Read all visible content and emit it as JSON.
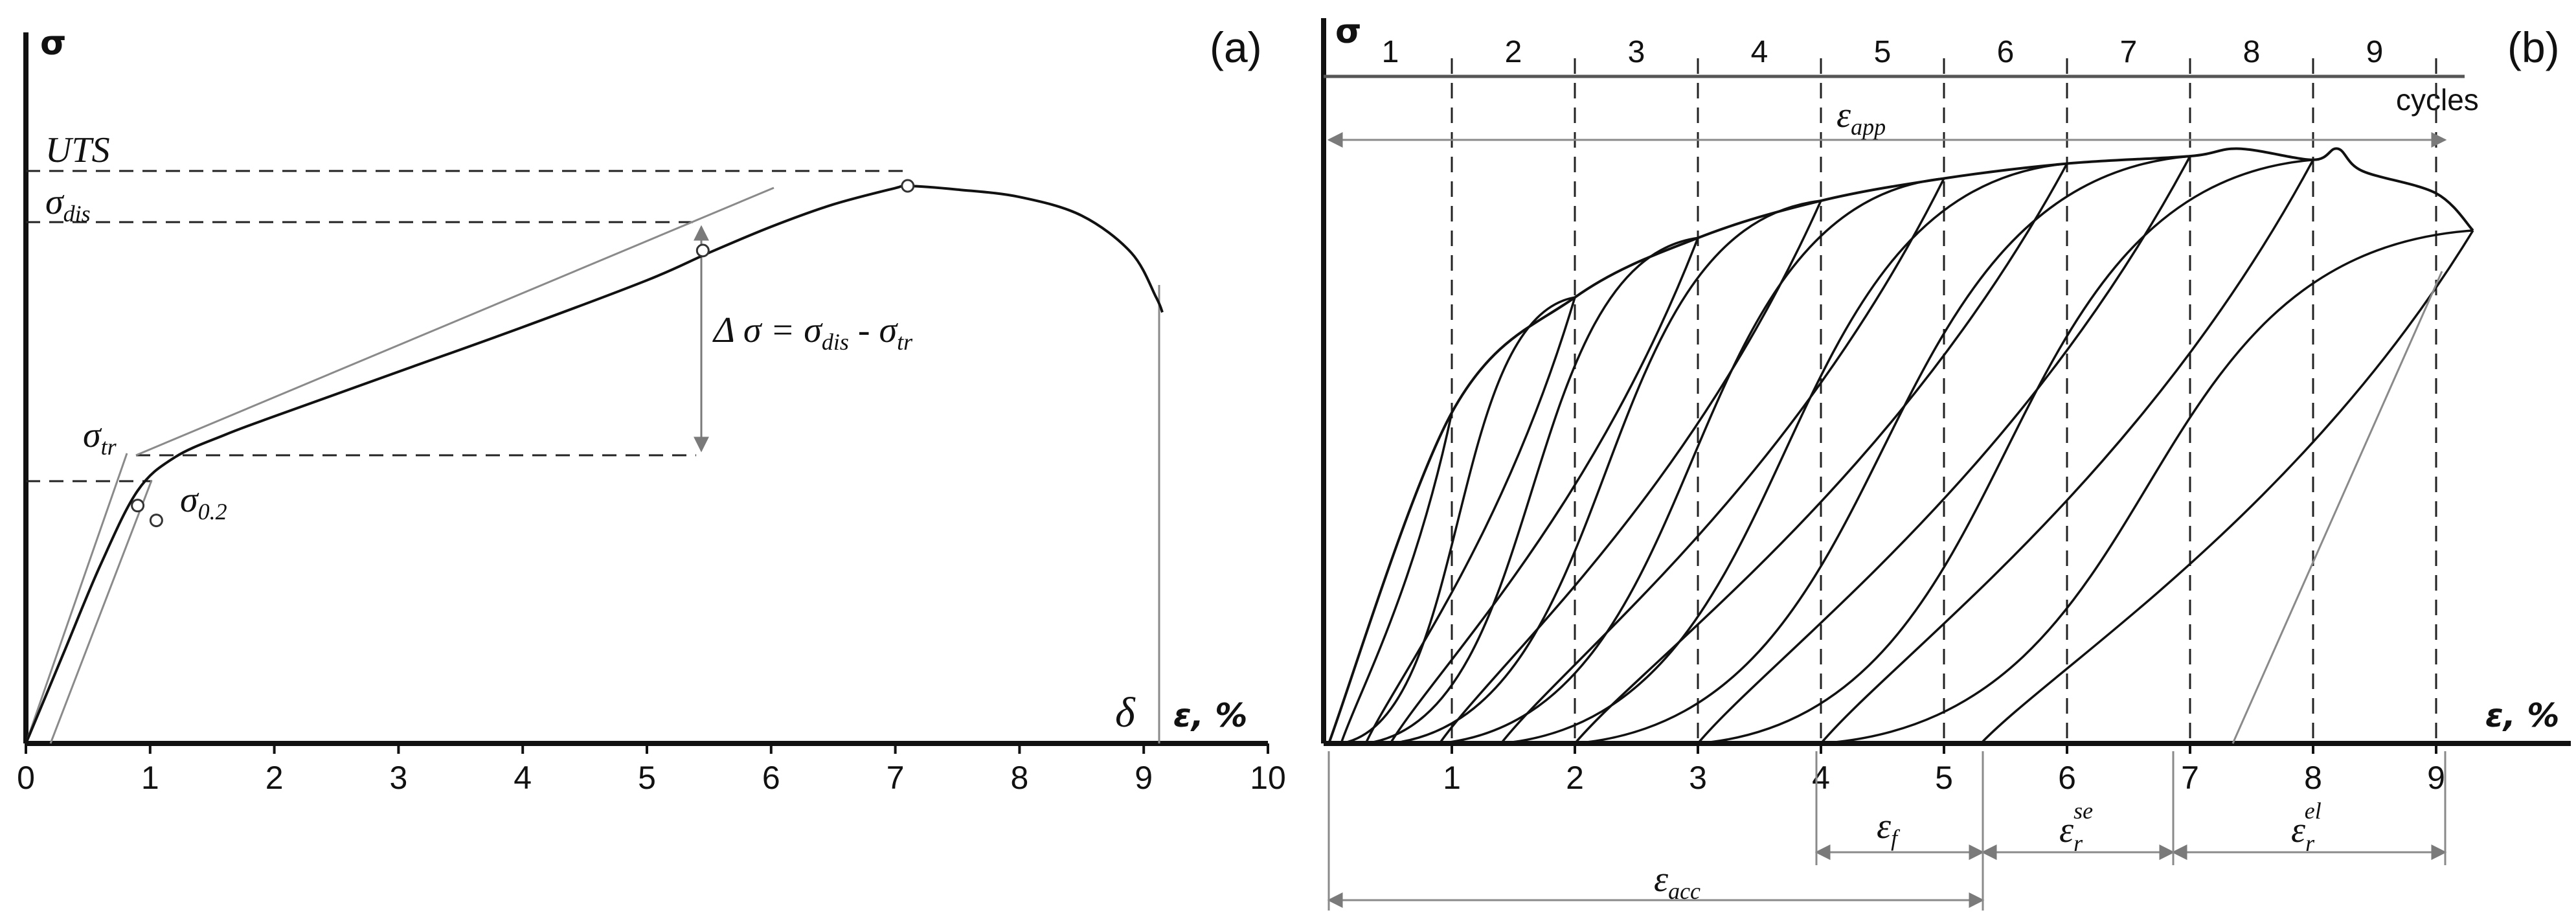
{
  "chart_data": [
    {
      "type": "line",
      "panel_label": "(a)",
      "xlabel": "ε, %",
      "ylabel": "σ",
      "xlim": [
        0,
        10
      ],
      "x_ticks": [
        "0",
        "1",
        "2",
        "3",
        "4",
        "5",
        "6",
        "7",
        "8",
        "9",
        "10"
      ],
      "series": [
        {
          "x": [
            0,
            0.3,
            0.6,
            0.9,
            1.2,
            1.6,
            2,
            3,
            4,
            5,
            5.5,
            6,
            6.5,
            7,
            7.1,
            7.5,
            8,
            8.5,
            8.9,
            9.1,
            9.15
          ],
          "y": [
            0,
            0.12,
            0.24,
            0.34,
            0.385,
            0.415,
            0.44,
            0.5,
            0.56,
            0.623,
            0.66,
            0.695,
            0.725,
            0.747,
            0.75,
            0.745,
            0.735,
            0.71,
            0.66,
            0.6,
            0.58
          ]
        }
      ],
      "annotations": {
        "uts": "UTS",
        "sigma_dis": "σ",
        "sigma_dis_sub": "dis",
        "sigma_tr": "σ",
        "sigma_tr_sub": "tr",
        "sigma_02": "σ",
        "sigma_02_sub": "0.2",
        "delta_sigma": "Δ σ = σ",
        "delta_sigma_sub1": "dis",
        "delta_sigma_mid": " - σ",
        "delta_sigma_sub2": "tr",
        "delta": "δ"
      },
      "marked_points": [
        {
          "x": 0.9,
          "y": 0.32
        },
        {
          "x": 1.05,
          "y": 0.3
        },
        {
          "x": 5.45,
          "y": 0.663
        },
        {
          "x": 7.1,
          "y": 0.75
        }
      ],
      "fracture_strain": 9.15
    },
    {
      "type": "line",
      "panel_label": "(b)",
      "xlabel": "ε, %",
      "ylabel": "σ",
      "xlim": [
        0,
        9.5
      ],
      "x_ticks": [
        "1",
        "2",
        "3",
        "4",
        "5",
        "6",
        "7",
        "8",
        "9"
      ],
      "cycle_label": "cycles",
      "cycles": [
        "1",
        "2",
        "3",
        "4",
        "5",
        "6",
        "7",
        "8",
        "9"
      ],
      "annotations": {
        "eps_app": "ε",
        "eps_app_sub": "app",
        "eps_acc": "ε",
        "eps_acc_sub": "acc",
        "eps_f": "ε",
        "eps_f_sub": "f",
        "eps_rse": "ε",
        "eps_rse_sub": "r",
        "eps_rse_sup": "se",
        "eps_rel": "ε",
        "eps_rel_sub": "r",
        "eps_rel_sup": "el"
      },
      "envelope": {
        "x": [
          0,
          1,
          2,
          3,
          4,
          5,
          6,
          7,
          7.4,
          8,
          8.2,
          8.4,
          9,
          9.3
        ],
        "y": [
          0,
          0.445,
          0.6,
          0.68,
          0.73,
          0.76,
          0.78,
          0.79,
          0.8,
          0.785,
          0.8,
          0.77,
          0.74,
          0.69
        ]
      },
      "unload_cycles": [
        {
          "peak_x": 1,
          "peak_y": 0.445,
          "residual_x": 0.1
        },
        {
          "peak_x": 2,
          "peak_y": 0.6,
          "residual_x": 0.3
        },
        {
          "peak_x": 3,
          "peak_y": 0.68,
          "residual_x": 0.5
        },
        {
          "peak_x": 4,
          "peak_y": 0.73,
          "residual_x": 0.9
        },
        {
          "peak_x": 5,
          "peak_y": 0.76,
          "residual_x": 1.4
        },
        {
          "peak_x": 6,
          "peak_y": 0.78,
          "residual_x": 2.0
        },
        {
          "peak_x": 7,
          "peak_y": 0.79,
          "residual_x": 3.0
        },
        {
          "peak_x": 8,
          "peak_y": 0.785,
          "residual_x": 4.0
        },
        {
          "peak_x": 9.3,
          "peak_y": 0.69,
          "residual_x": 5.3
        }
      ]
    }
  ]
}
